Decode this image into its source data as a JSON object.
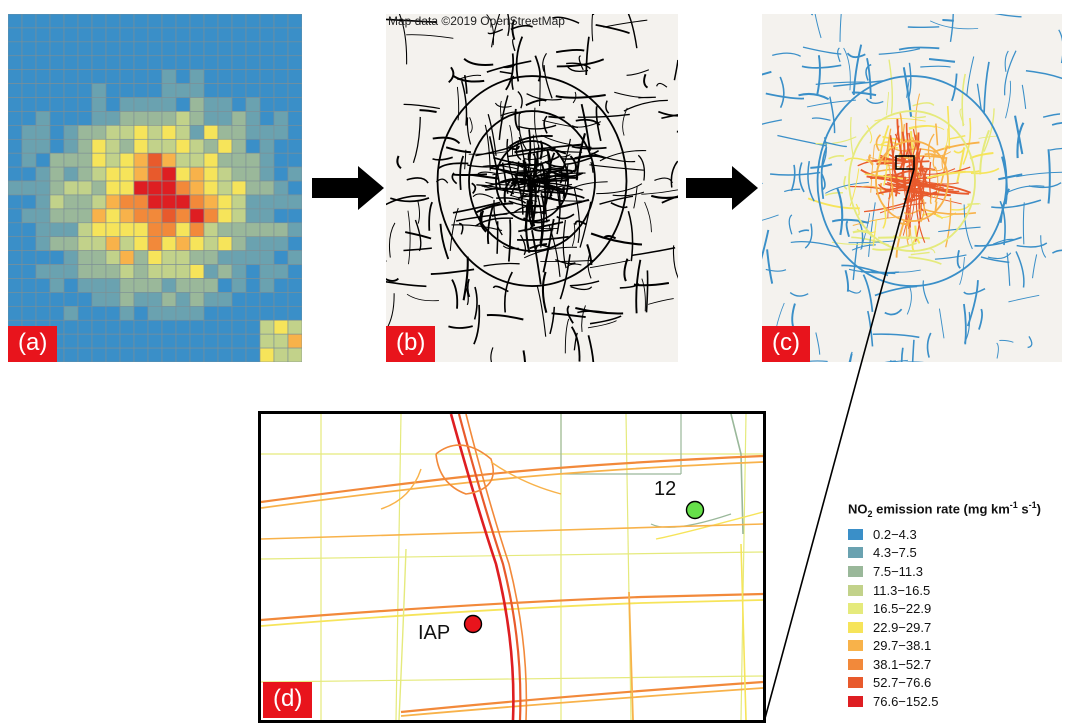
{
  "panels": {
    "a": {
      "tag": "(a)"
    },
    "b": {
      "tag": "(b)",
      "attribution": "Map data ©2019 OpenStreetMap"
    },
    "c": {
      "tag": "(c)"
    },
    "d": {
      "tag": "(d)"
    }
  },
  "sites": {
    "iap": {
      "label": "IAP",
      "color": "#e8141c"
    },
    "site12": {
      "label": "12",
      "color": "#66e04a"
    }
  },
  "legend": {
    "title_prefix": "NO",
    "title_sub": "2",
    "title_mid": " emission rate (mg km",
    "title_sup1": "-1",
    "title_mid2": " s",
    "title_sup2": "-1",
    "title_suffix": ")",
    "bins": [
      {
        "label": "0.2−4.3",
        "color": "#3a8fc8"
      },
      {
        "label": "4.3−7.5",
        "color": "#6aa2b0"
      },
      {
        "label": "7.5−11.3",
        "color": "#9ab89a"
      },
      {
        "label": "11.3−16.5",
        "color": "#c2d28a"
      },
      {
        "label": "16.5−22.9",
        "color": "#e5ea7c"
      },
      {
        "label": "22.9−29.7",
        "color": "#f6e45a"
      },
      {
        "label": "29.7−38.1",
        "color": "#f8b24a"
      },
      {
        "label": "38.1−52.7",
        "color": "#f2893a"
      },
      {
        "label": "52.7−76.6",
        "color": "#e85a2c"
      },
      {
        "label": "76.6−152.5",
        "color": "#de1e22"
      }
    ]
  }
}
